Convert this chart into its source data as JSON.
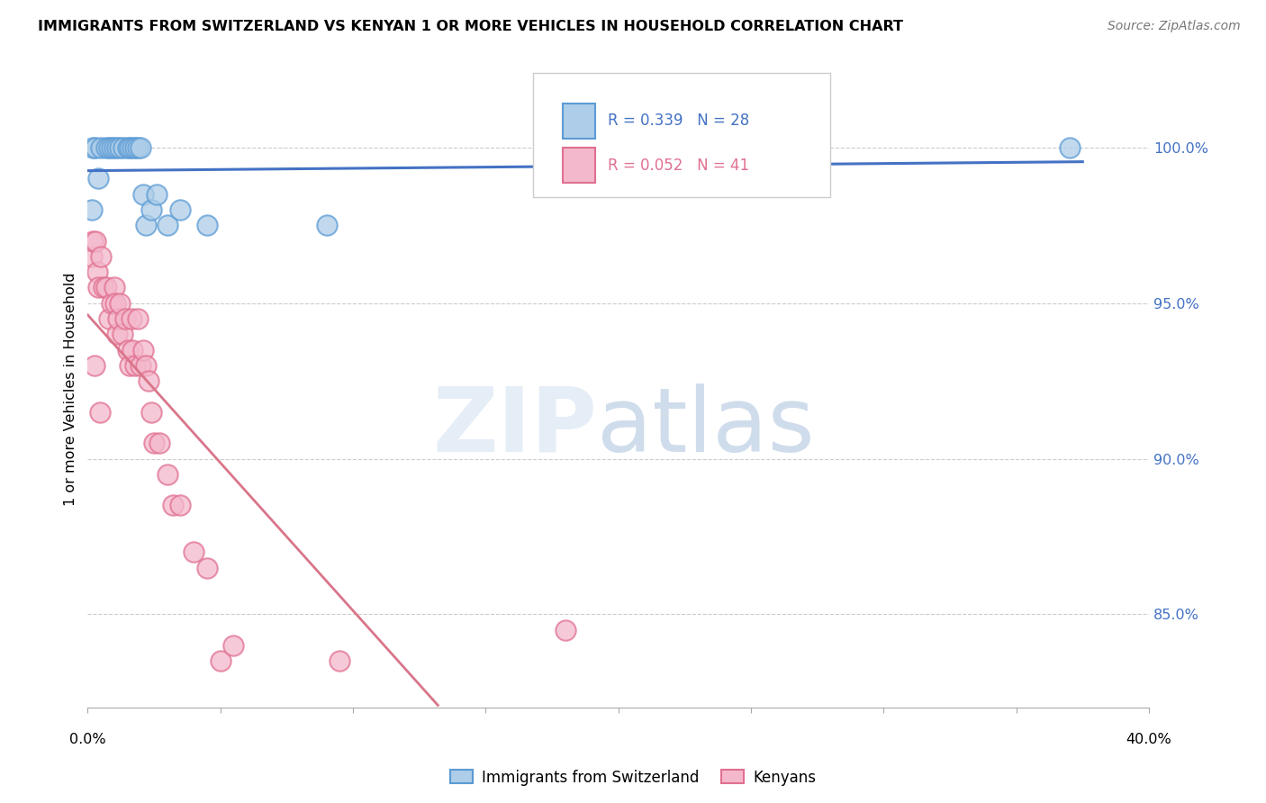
{
  "title": "IMMIGRANTS FROM SWITZERLAND VS KENYAN 1 OR MORE VEHICLES IN HOUSEHOLD CORRELATION CHART",
  "source": "Source: ZipAtlas.com",
  "ylabel": "1 or more Vehicles in Household",
  "ytick_labels": [
    "100.0%",
    "95.0%",
    "90.0%",
    "85.0%"
  ],
  "ytick_values": [
    100.0,
    95.0,
    90.0,
    85.0
  ],
  "legend_label1": "Immigrants from Switzerland",
  "legend_label2": "Kenyans",
  "R_swiss": 0.339,
  "N_swiss": 28,
  "R_kenyan": 0.052,
  "N_kenyan": 41,
  "swiss_face_color": "#aecde8",
  "swiss_edge_color": "#5b9bd5",
  "kenyan_face_color": "#f4b8cc",
  "kenyan_edge_color": "#e07090",
  "swiss_line_color": "#4472c4",
  "kenyan_line_color": "#d9758a",
  "xlim": [
    0.0,
    40.0
  ],
  "ylim": [
    82.0,
    102.5
  ],
  "swiss_x": [
    0.2,
    0.3,
    0.5,
    0.7,
    0.8,
    0.9,
    1.0,
    1.1,
    1.2,
    1.35,
    1.5,
    1.6,
    1.7,
    1.8,
    1.9,
    2.0,
    2.1,
    2.2,
    2.4,
    2.6,
    3.0,
    3.5,
    4.5,
    9.0,
    27.0,
    37.0,
    0.15,
    0.4
  ],
  "swiss_y": [
    100.0,
    100.0,
    100.0,
    100.0,
    100.0,
    100.0,
    100.0,
    100.0,
    100.0,
    100.0,
    100.0,
    100.0,
    100.0,
    100.0,
    100.0,
    100.0,
    98.5,
    97.5,
    98.0,
    98.5,
    97.5,
    98.0,
    97.5,
    97.5,
    100.0,
    100.0,
    98.0,
    99.0
  ],
  "kenyan_x": [
    0.15,
    0.2,
    0.3,
    0.35,
    0.4,
    0.5,
    0.6,
    0.7,
    0.8,
    0.9,
    1.0,
    1.05,
    1.1,
    1.15,
    1.2,
    1.3,
    1.4,
    1.5,
    1.6,
    1.65,
    1.7,
    1.8,
    1.9,
    2.0,
    2.1,
    2.2,
    2.3,
    2.4,
    2.5,
    2.7,
    3.0,
    3.2,
    3.5,
    4.0,
    4.5,
    5.0,
    5.5,
    9.5,
    18.0,
    0.25,
    0.45
  ],
  "kenyan_y": [
    96.5,
    97.0,
    97.0,
    96.0,
    95.5,
    96.5,
    95.5,
    95.5,
    94.5,
    95.0,
    95.5,
    95.0,
    94.0,
    94.5,
    95.0,
    94.0,
    94.5,
    93.5,
    93.0,
    94.5,
    93.5,
    93.0,
    94.5,
    93.0,
    93.5,
    93.0,
    92.5,
    91.5,
    90.5,
    90.5,
    89.5,
    88.5,
    88.5,
    87.0,
    86.5,
    83.5,
    84.0,
    83.5,
    84.5,
    93.0,
    91.5
  ]
}
